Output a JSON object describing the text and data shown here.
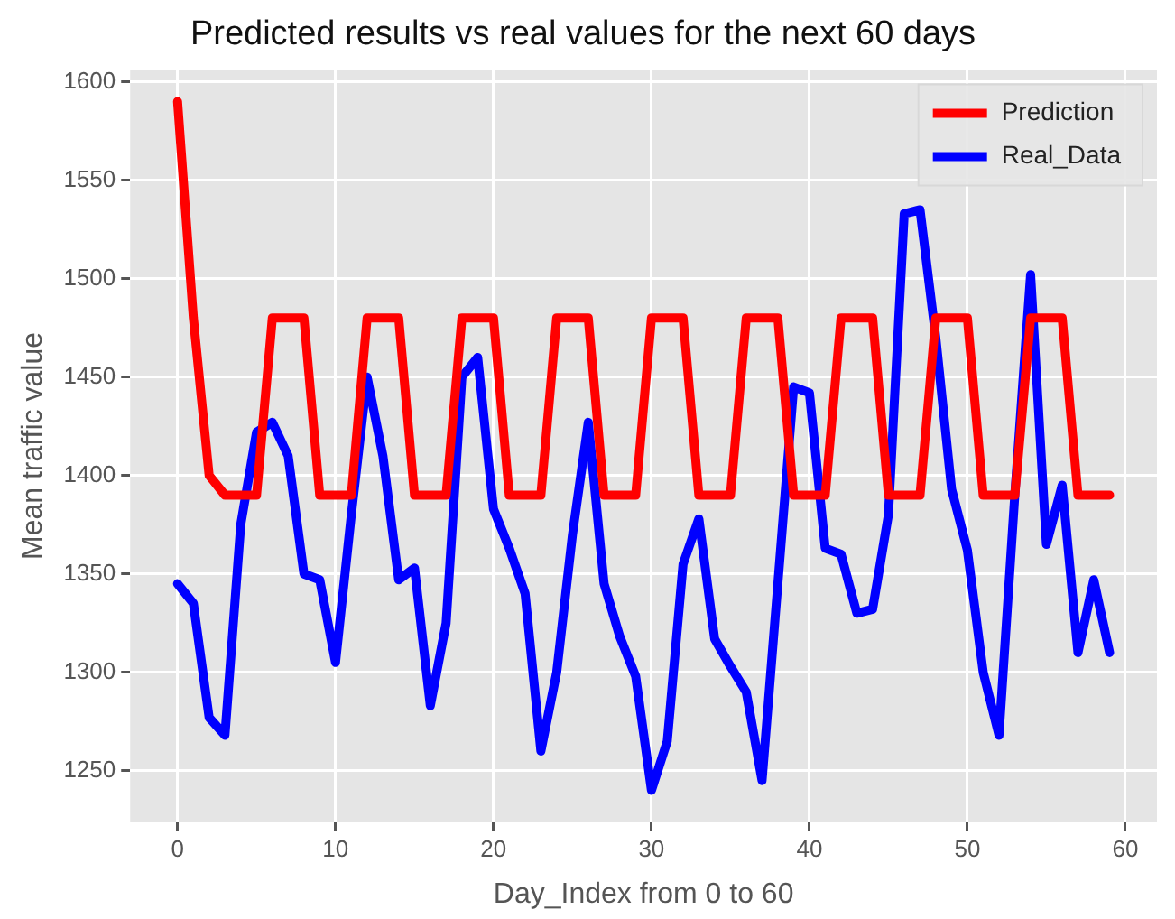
{
  "chart_data": {
    "type": "line",
    "title": "Predicted results vs real values for the next 60 days",
    "xlabel": "Day_Index from 0 to 60",
    "ylabel": "Mean traffic value",
    "x": [
      0,
      1,
      2,
      3,
      4,
      5,
      6,
      7,
      8,
      9,
      10,
      11,
      12,
      13,
      14,
      15,
      16,
      17,
      18,
      19,
      20,
      21,
      22,
      23,
      24,
      25,
      26,
      27,
      28,
      29,
      30,
      31,
      32,
      33,
      34,
      35,
      36,
      37,
      38,
      39,
      40,
      41,
      42,
      43,
      44,
      45,
      46,
      47,
      48,
      49,
      50,
      51,
      52,
      53,
      54,
      55,
      56,
      57,
      58,
      59
    ],
    "series": [
      {
        "name": "Prediction",
        "color": "#ff0000",
        "values": [
          1590,
          1480,
          1400,
          1390,
          1390,
          1390,
          1480,
          1480,
          1480,
          1390,
          1390,
          1390,
          1480,
          1480,
          1480,
          1390,
          1390,
          1390,
          1480,
          1480,
          1480,
          1390,
          1390,
          1390,
          1480,
          1480,
          1480,
          1390,
          1390,
          1390,
          1480,
          1480,
          1480,
          1390,
          1390,
          1390,
          1480,
          1480,
          1480,
          1390,
          1390,
          1390,
          1480,
          1480,
          1480,
          1390,
          1390,
          1390,
          1480,
          1480,
          1480,
          1390,
          1390,
          1390,
          1480,
          1480,
          1480,
          1390,
          1390,
          1390
        ]
      },
      {
        "name": "Real_Data",
        "color": "#0000ff",
        "values": [
          1345,
          1335,
          1277,
          1268,
          1375,
          1422,
          1427,
          1410,
          1350,
          1347,
          1305,
          1380,
          1450,
          1410,
          1347,
          1353,
          1283,
          1325,
          1450,
          1460,
          1383,
          1363,
          1340,
          1260,
          1300,
          1370,
          1427,
          1345,
          1318,
          1298,
          1240,
          1265,
          1355,
          1378,
          1317,
          1303,
          1290,
          1245,
          1345,
          1445,
          1442,
          1363,
          1360,
          1330,
          1332,
          1380,
          1533,
          1535,
          1470,
          1393,
          1362,
          1300,
          1268,
          1390,
          1502,
          1365,
          1395,
          1310,
          1347,
          1310
        ]
      }
    ],
    "xlim": [
      -3,
      62
    ],
    "xticks": [
      0,
      10,
      20,
      30,
      40,
      50,
      60
    ],
    "ylim": [
      1224,
      1606
    ],
    "yticks": [
      1250,
      1300,
      1350,
      1400,
      1450,
      1500,
      1550,
      1600
    ],
    "grid": true,
    "legend": "top right",
    "marker": "none",
    "line_style": "solid"
  }
}
